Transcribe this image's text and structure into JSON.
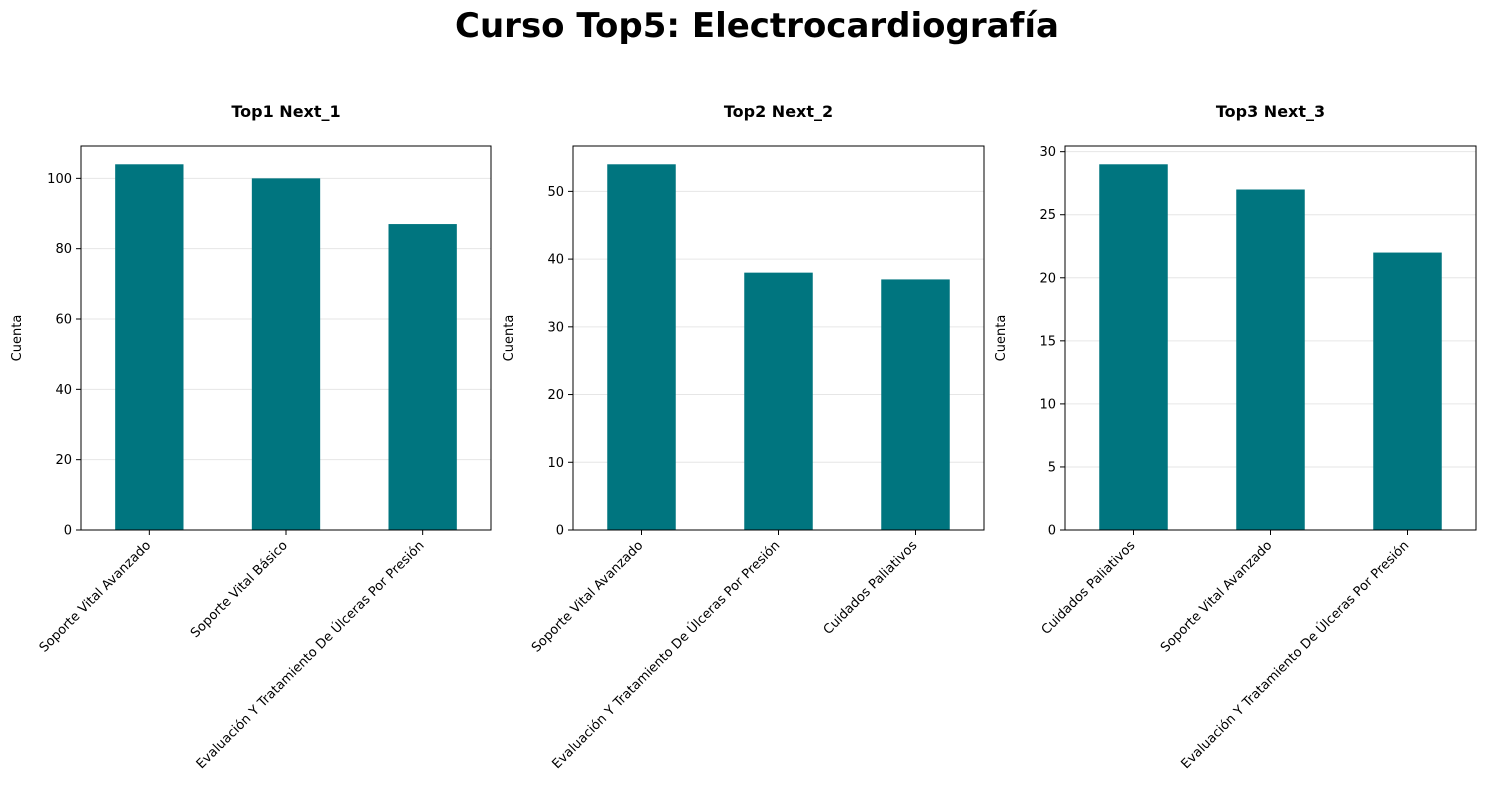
{
  "figure": {
    "suptitle": "Curso Top5: Electrocardiografía",
    "bar_color": "#00757f",
    "grid_color": "#e6e6e6"
  },
  "chart_data": [
    {
      "type": "bar",
      "title": "Top1 Next_1",
      "xlabel": "",
      "ylabel": "Cuenta",
      "categories": [
        "Soporte Vital Avanzado",
        "Soporte Vital Básico",
        "Evaluación Y Tratamiento De Úlceras Por Presión"
      ],
      "values": [
        104,
        100,
        87
      ],
      "ylim": [
        0,
        109.2
      ],
      "yticks": [
        0,
        20,
        40,
        60,
        80,
        100
      ],
      "grid": "y"
    },
    {
      "type": "bar",
      "title": "Top2 Next_2",
      "xlabel": "",
      "ylabel": "Cuenta",
      "categories": [
        "Soporte Vital Avanzado",
        "Evaluación Y Tratamiento De Úlceras Por Presión",
        "Cuidados Paliativos"
      ],
      "values": [
        54,
        38,
        37
      ],
      "ylim": [
        0,
        56.7
      ],
      "yticks": [
        0,
        10,
        20,
        30,
        40,
        50
      ],
      "grid": "y"
    },
    {
      "type": "bar",
      "title": "Top3 Next_3",
      "xlabel": "",
      "ylabel": "Cuenta",
      "categories": [
        "Cuidados Paliativos",
        "Soporte Vital Avanzado",
        "Evaluación Y Tratamiento De Úlceras Por Presión"
      ],
      "values": [
        29,
        27,
        22
      ],
      "ylim": [
        0,
        30.45
      ],
      "yticks": [
        0,
        5,
        10,
        15,
        20,
        25,
        30
      ],
      "grid": "y"
    }
  ]
}
